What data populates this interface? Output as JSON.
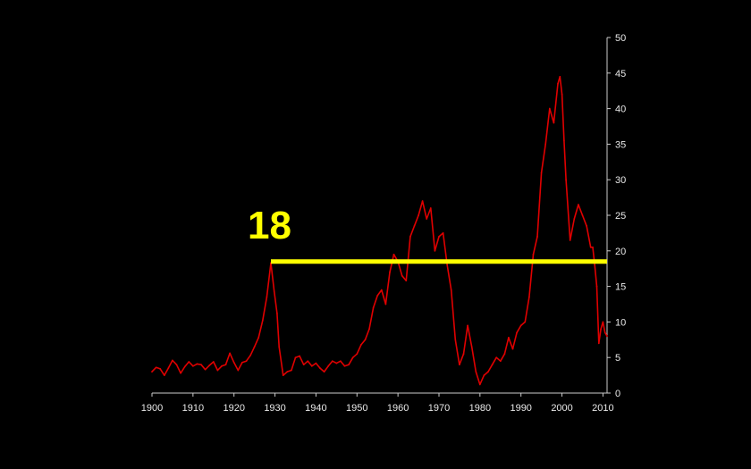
{
  "chart_data": {
    "type": "line",
    "title": "",
    "xlabel": "",
    "ylabel": "",
    "xlim": [
      1900,
      2011
    ],
    "ylim": [
      0,
      50
    ],
    "grid": false,
    "legend": "none",
    "y_axis_side": "right",
    "background_color": "#000000",
    "x_ticks": [
      "1900",
      "1910",
      "1920",
      "1930",
      "1940",
      "1950",
      "1960",
      "1970",
      "1980",
      "1990",
      "2000",
      "2010"
    ],
    "y_ticks": [
      "0",
      "5",
      "10",
      "15",
      "20",
      "25",
      "30",
      "35",
      "40",
      "45",
      "50"
    ],
    "series": [
      {
        "color": "#e00000",
        "x": [
          1900,
          1901,
          1902,
          1903,
          1904,
          1905,
          1906,
          1907,
          1908,
          1909,
          1910,
          1911,
          1912,
          1913,
          1914,
          1915,
          1916,
          1917,
          1918,
          1919,
          1920,
          1921,
          1922,
          1923,
          1924,
          1925,
          1926,
          1927,
          1928,
          1929,
          1929.8,
          1930.5,
          1931,
          1932,
          1933,
          1934,
          1935,
          1936,
          1937,
          1938,
          1939,
          1940,
          1941,
          1942,
          1943,
          1944,
          1945,
          1946,
          1947,
          1948,
          1949,
          1950,
          1951,
          1952,
          1953,
          1954,
          1955,
          1956,
          1957,
          1958,
          1959,
          1960,
          1961,
          1962,
          1963,
          1964,
          1965,
          1966,
          1967,
          1968,
          1969,
          1970,
          1971,
          1972,
          1973,
          1974,
          1975,
          1976,
          1977,
          1978,
          1979,
          1980,
          1981,
          1982,
          1983,
          1984,
          1985,
          1986,
          1987,
          1988,
          1989,
          1990,
          1991,
          1992,
          1993,
          1994,
          1995,
          1996,
          1997,
          1998,
          1999,
          1999.5,
          2000,
          2000.5,
          2001,
          2002,
          2003,
          2004,
          2005,
          2006,
          2007,
          2007.5,
          2008,
          2008.5,
          2009,
          2009.5,
          2010,
          2010.5,
          2011
        ],
        "values": [
          3.0,
          3.6,
          3.4,
          2.5,
          3.5,
          4.6,
          4.0,
          2.8,
          3.7,
          4.4,
          3.8,
          4.1,
          4.0,
          3.3,
          3.9,
          4.4,
          3.2,
          3.8,
          4.0,
          5.6,
          4.3,
          3.2,
          4.3,
          4.5,
          5.3,
          6.5,
          7.8,
          10.2,
          13.5,
          18.3,
          14.3,
          11.2,
          6.5,
          2.5,
          3.0,
          3.2,
          5.0,
          5.2,
          4.0,
          4.5,
          3.8,
          4.2,
          3.5,
          3.0,
          3.8,
          4.5,
          4.2,
          4.5,
          3.8,
          4.0,
          5.0,
          5.5,
          6.8,
          7.5,
          9.0,
          12.0,
          13.7,
          14.5,
          12.5,
          17.0,
          19.5,
          18.5,
          16.5,
          15.8,
          22.0,
          23.5,
          25.0,
          27.0,
          24.5,
          26.0,
          20.0,
          22.0,
          22.5,
          18.0,
          14.5,
          7.5,
          4.0,
          5.5,
          9.5,
          6.5,
          3.0,
          1.2,
          2.5,
          3.0,
          4.0,
          5.0,
          4.5,
          5.5,
          7.8,
          6.2,
          8.5,
          9.5,
          10.0,
          13.5,
          19.5,
          22.0,
          31.0,
          35.0,
          40.0,
          38.0,
          43.5,
          44.5,
          42.0,
          35.5,
          30.0,
          21.5,
          24.5,
          26.5,
          25.0,
          23.5,
          20.5,
          20.5,
          18.0,
          15.0,
          7.0,
          9.0,
          10.0,
          8.5,
          8.0
        ]
      }
    ],
    "reference_line": {
      "value": 18.5,
      "x_start": 1929,
      "x_end": 2011,
      "color": "#ffff00"
    },
    "annotation": {
      "text": "18",
      "color": "#ffff00"
    }
  }
}
